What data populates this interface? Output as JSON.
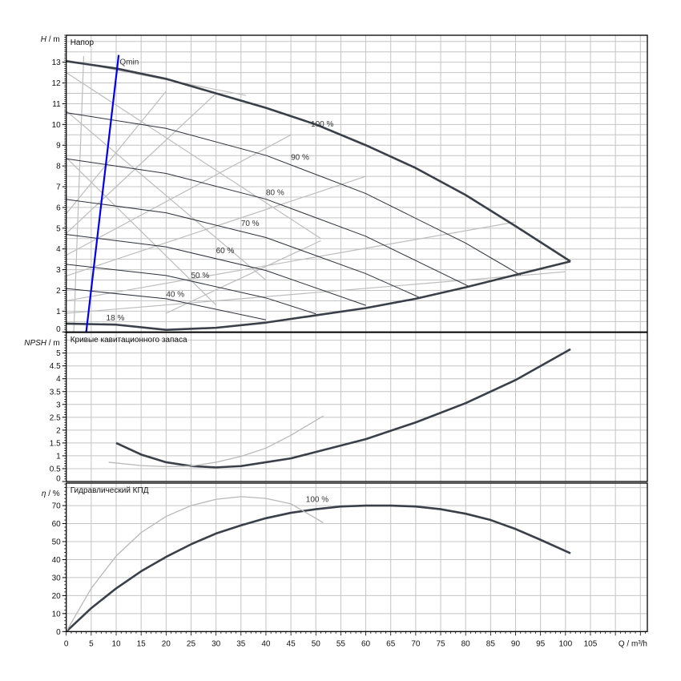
{
  "chart_data": [
    {
      "type": "line",
      "title": "Напор",
      "ylabel_var": "H",
      "ylabel_unit": "/ m",
      "xlim": [
        0,
        116.4
      ],
      "ylim": [
        0,
        14.3
      ],
      "yticks": [
        0,
        1,
        2,
        3,
        4,
        5,
        6,
        7,
        8,
        9,
        10,
        11,
        12,
        13
      ],
      "ygrid_step": 0.5,
      "grid": true,
      "series": [
        {
          "name": "100 %",
          "style": "thick",
          "x": [
            0,
            10,
            20,
            30,
            40,
            50,
            60,
            70,
            80,
            90,
            101
          ],
          "y": [
            13.05,
            12.7,
            12.2,
            11.5,
            10.8,
            10.0,
            9.0,
            7.9,
            6.6,
            5.1,
            3.4
          ]
        },
        {
          "name": "90 %",
          "style": "thin",
          "x": [
            0,
            20,
            40,
            60,
            80,
            91
          ],
          "y": [
            10.57,
            9.81,
            8.51,
            6.67,
            4.28,
            2.74
          ]
        },
        {
          "name": "80 %",
          "style": "thin",
          "x": [
            0,
            20,
            40,
            60,
            80.6
          ],
          "y": [
            8.35,
            7.64,
            6.4,
            4.61,
            2.2
          ]
        },
        {
          "name": "70 %",
          "style": "thin",
          "x": [
            0,
            20,
            40,
            60,
            70.6
          ],
          "y": [
            6.39,
            5.74,
            4.55,
            2.81,
            1.68
          ]
        },
        {
          "name": "60 %",
          "style": "thin",
          "x": [
            0,
            20,
            40,
            60
          ],
          "y": [
            4.7,
            4.1,
            2.96,
            1.28
          ]
        },
        {
          "name": "50 %",
          "style": "thin",
          "x": [
            0,
            20,
            40,
            50
          ],
          "y": [
            3.26,
            2.72,
            1.64,
            0.87
          ]
        },
        {
          "name": "40 %",
          "style": "thin",
          "x": [
            0,
            20,
            40
          ],
          "y": [
            2.09,
            1.6,
            0.58
          ]
        },
        {
          "name": "18 %",
          "style": "thick",
          "x": [
            0,
            10,
            20,
            30,
            40,
            50,
            60,
            70,
            80,
            90,
            101
          ],
          "y": [
            0.4,
            0.35,
            0.1,
            0.2,
            0.45,
            0.8,
            1.15,
            1.6,
            2.15,
            2.75,
            3.4
          ]
        },
        {
          "name": "Qmin",
          "style": "blue",
          "x": [
            4,
            10.5
          ],
          "y": [
            0,
            13.35
          ]
        }
      ],
      "label_positions": {
        "100 %": [
          49,
          9.9
        ],
        "90 %": [
          45,
          8.3
        ],
        "80 %": [
          40,
          6.6
        ],
        "70 %": [
          35,
          5.1
        ],
        "60 %": [
          30,
          3.8
        ],
        "50 %": [
          25,
          2.6
        ],
        "40 %": [
          20,
          1.7
        ],
        "18 %": [
          8,
          0.55
        ],
        "Qmin": [
          10.7,
          12.9
        ]
      },
      "background_lines": [
        {
          "x": [
            0,
            36
          ],
          "y": [
            13.1,
            11.4
          ]
        },
        {
          "x": [
            0,
            51
          ],
          "y": [
            12.5,
            4.5
          ]
        },
        {
          "x": [
            0,
            20
          ],
          "y": [
            5.7,
            11.6
          ]
        },
        {
          "x": [
            0,
            30
          ],
          "y": [
            4.75,
            11.5
          ]
        },
        {
          "x": [
            0,
            45
          ],
          "y": [
            3.7,
            9.5
          ]
        },
        {
          "x": [
            0,
            60
          ],
          "y": [
            2.7,
            7.5
          ]
        },
        {
          "x": [
            0,
            90
          ],
          "y": [
            1.5,
            5.3
          ]
        },
        {
          "x": [
            0,
            100
          ],
          "y": [
            0.9,
            2.9
          ]
        },
        {
          "x": [
            0,
            40
          ],
          "y": [
            10.65,
            2.5
          ]
        },
        {
          "x": [
            0,
            30
          ],
          "y": [
            8.4,
            1.3
          ]
        },
        {
          "x": [
            1.5,
            3.5
          ],
          "y": [
            0,
            13.3
          ]
        },
        {
          "x": [
            20,
            51
          ],
          "y": [
            0.9,
            4.4
          ]
        }
      ]
    },
    {
      "type": "line",
      "title": "Кривые кавитационного запаса",
      "ylabel_var": "NPSH",
      "ylabel_unit": "/ m",
      "xlim": [
        0,
        116.4
      ],
      "ylim": [
        0,
        5.8
      ],
      "yticks": [
        0,
        0.5,
        1,
        1.5,
        2,
        2.5,
        3,
        3.5,
        4,
        4.5,
        5
      ],
      "ygrid_step": 0.5,
      "grid": true,
      "series": [
        {
          "style": "thick",
          "x": [
            10,
            15,
            20,
            25,
            30,
            35,
            40,
            45,
            50,
            60,
            70,
            80,
            90,
            101
          ],
          "y": [
            1.5,
            1.05,
            0.75,
            0.6,
            0.55,
            0.6,
            0.75,
            0.9,
            1.15,
            1.65,
            2.3,
            3.05,
            3.95,
            5.15
          ]
        },
        {
          "style": "gray",
          "x": [
            8.5,
            15,
            20,
            25,
            30,
            35,
            40,
            45,
            51.5
          ],
          "y": [
            0.75,
            0.62,
            0.58,
            0.6,
            0.75,
            0.98,
            1.3,
            1.8,
            2.55
          ]
        }
      ]
    },
    {
      "type": "line",
      "title": "Гидравлический КПД",
      "ylabel_var": "η",
      "ylabel_unit": "/ %",
      "xlabel": "Q / m³/h",
      "xlim": [
        0,
        116.4
      ],
      "ylim": [
        0,
        82.5
      ],
      "xticks": [
        0,
        5,
        10,
        15,
        20,
        25,
        30,
        35,
        40,
        45,
        50,
        55,
        60,
        65,
        70,
        75,
        80,
        85,
        90,
        95,
        100,
        105
      ],
      "yticks": [
        0,
        10,
        20,
        30,
        40,
        50,
        60,
        70
      ],
      "ygrid_step": 10,
      "grid": true,
      "series": [
        {
          "name": "100 %",
          "style": "thick",
          "x": [
            0,
            5,
            10,
            15,
            20,
            25,
            30,
            35,
            40,
            45,
            50,
            55,
            60,
            65,
            70,
            75,
            80,
            85,
            90,
            95,
            101
          ],
          "y": [
            0,
            13,
            24,
            33.5,
            41.5,
            48.5,
            54.5,
            59,
            63,
            66,
            68,
            69.5,
            70,
            70,
            69.5,
            68,
            65.5,
            62,
            57,
            51,
            43.5
          ]
        },
        {
          "style": "gray",
          "x": [
            0,
            5,
            10,
            15,
            20,
            25,
            30,
            35,
            40,
            45,
            51.5
          ],
          "y": [
            0,
            24,
            42,
            55,
            64,
            70,
            73.5,
            75,
            74,
            71,
            60.5
          ]
        }
      ],
      "label_positions": {
        "100 %": [
          48,
          72
        ]
      }
    }
  ]
}
